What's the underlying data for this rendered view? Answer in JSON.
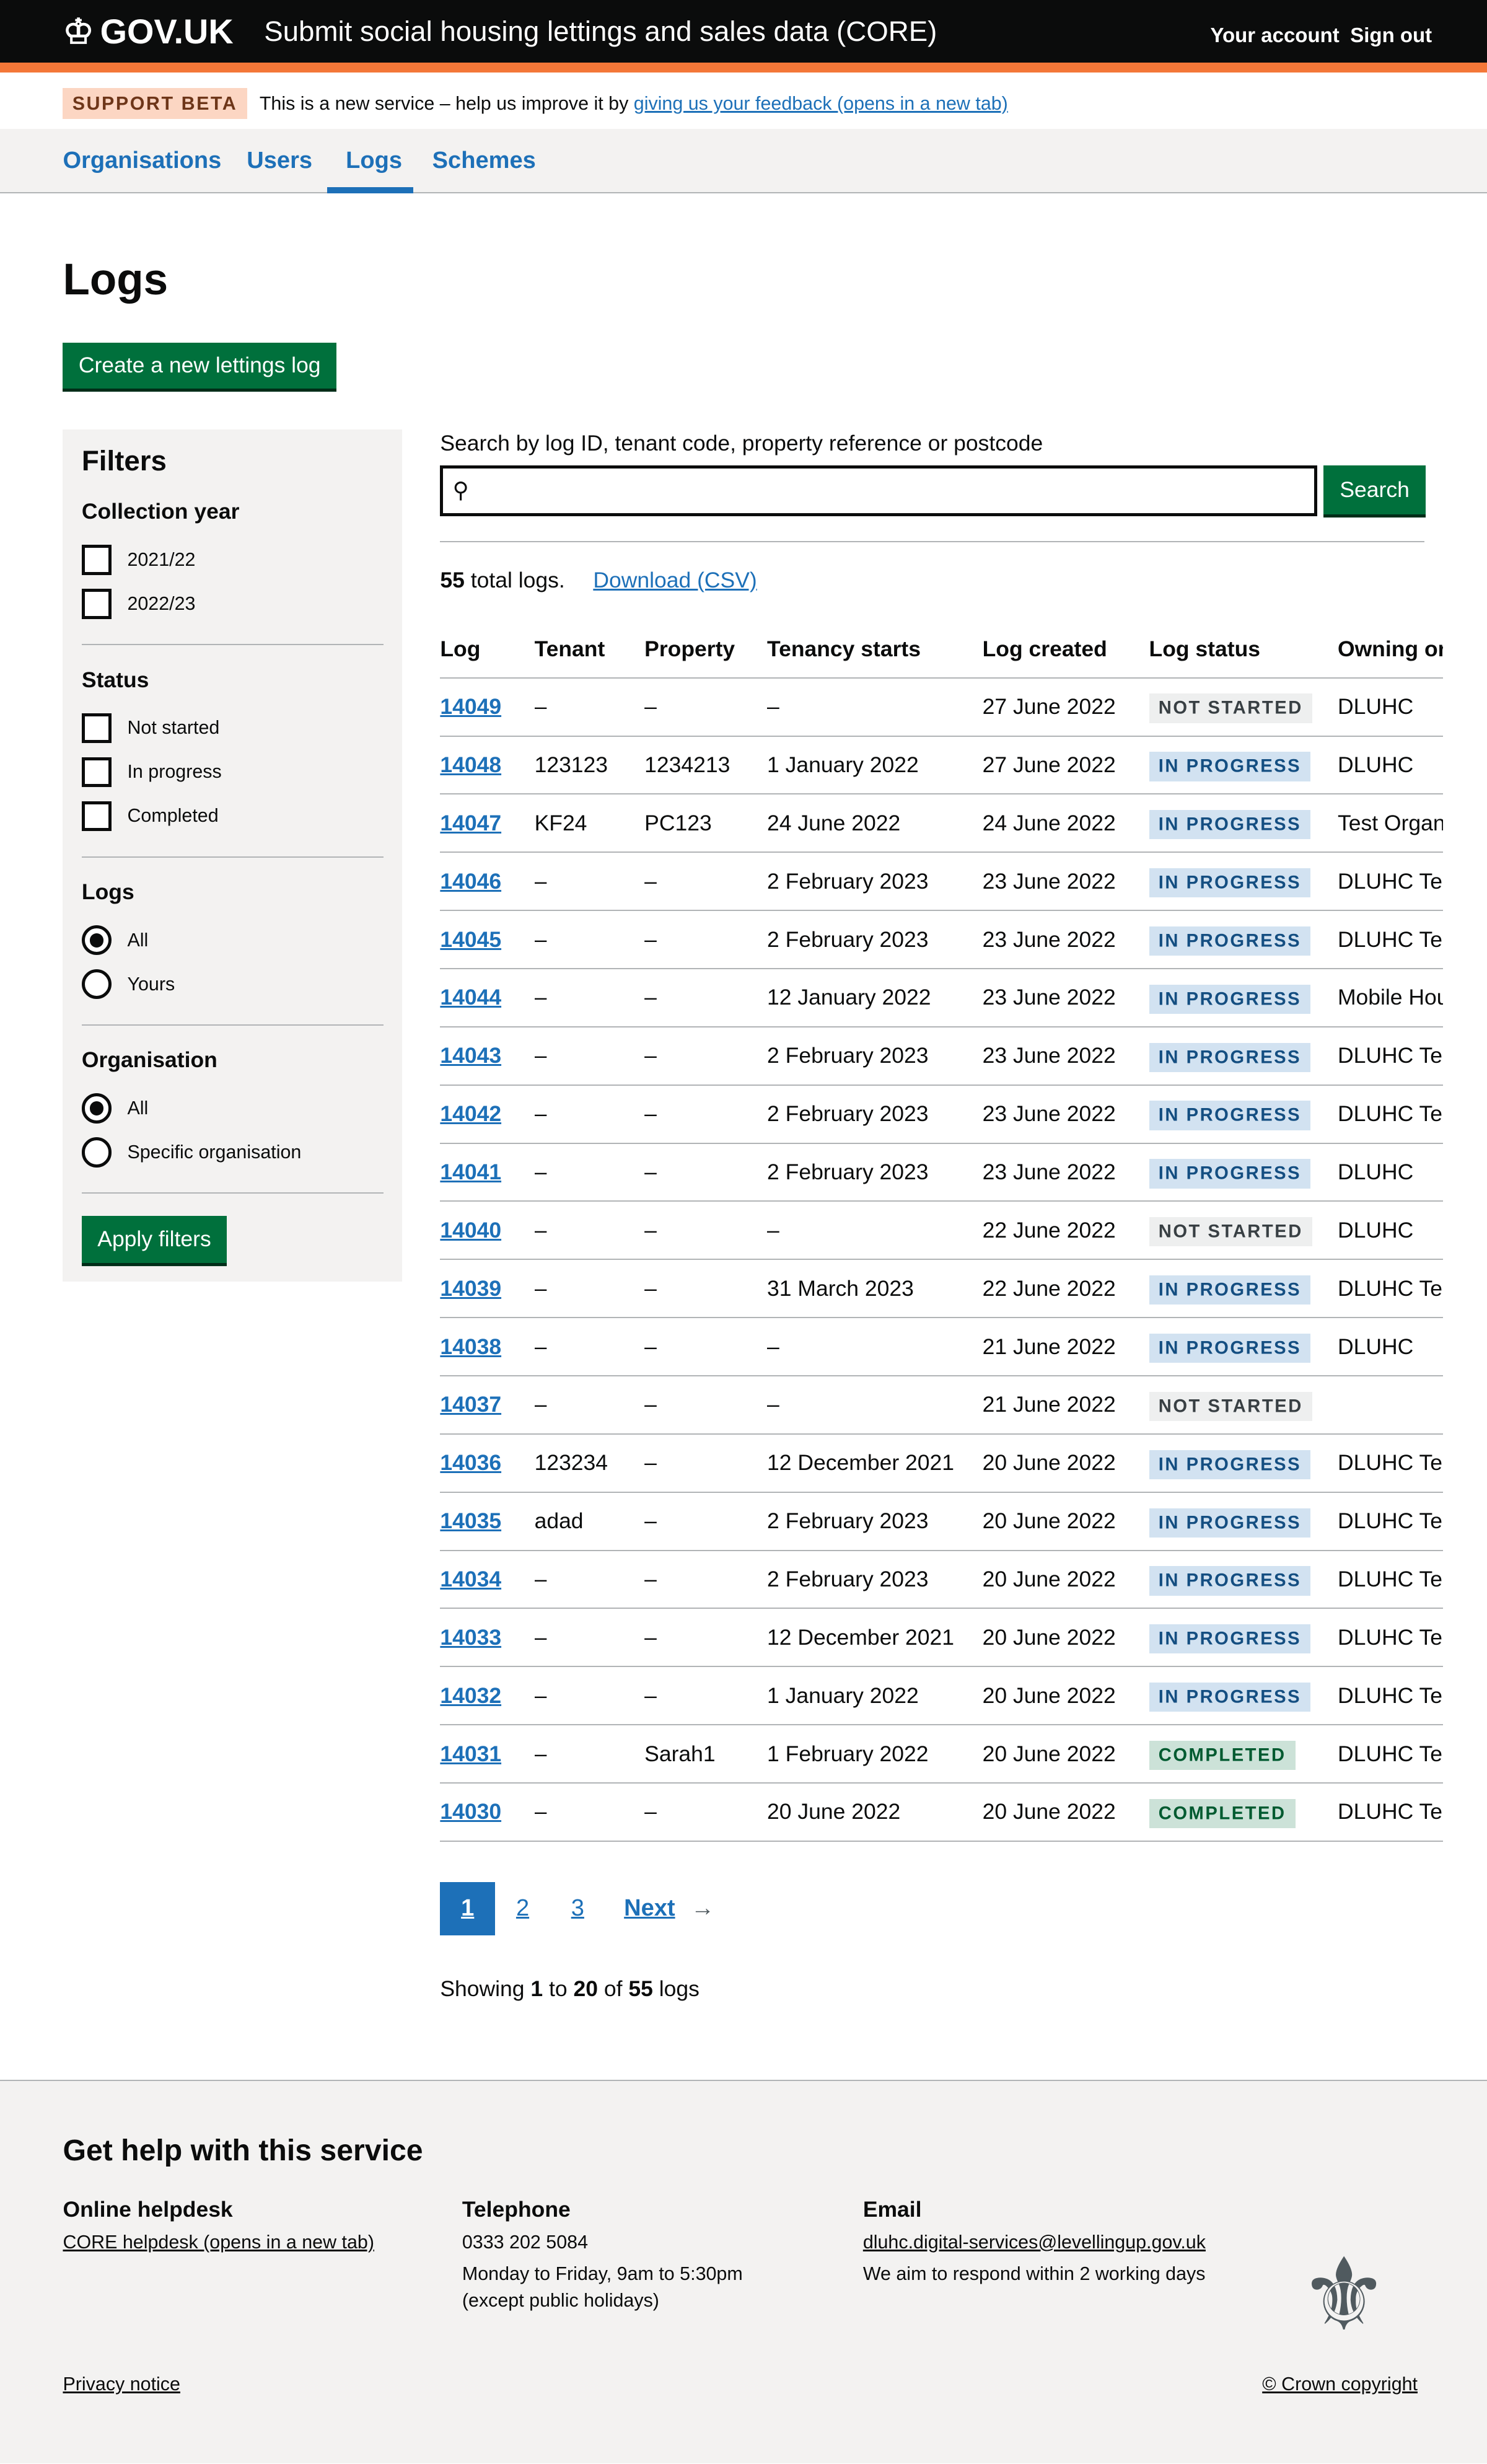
{
  "header": {
    "logo": "GOV.UK",
    "service": "Submit social housing lettings and sales data (CORE)",
    "your_account": "Your account",
    "sign_out": "Sign out"
  },
  "banner": {
    "tag": "SUPPORT BETA",
    "text": "This is a new service – help us improve it by",
    "link": "giving us your feedback (opens in a new tab)"
  },
  "nav": {
    "items": [
      {
        "label": "Organisations"
      },
      {
        "label": "Users"
      },
      {
        "label": "Logs"
      },
      {
        "label": "Schemes"
      }
    ],
    "active": "Logs"
  },
  "page": {
    "title": "Logs",
    "create_button": "Create a new lettings log"
  },
  "filters": {
    "title": "Filters",
    "collection_year": {
      "label": "Collection year",
      "options": [
        "2021/22",
        "2022/23"
      ]
    },
    "status": {
      "label": "Status",
      "options": [
        "Not started",
        "In progress",
        "Completed"
      ]
    },
    "logs": {
      "label": "Logs",
      "options": [
        "All",
        "Yours"
      ],
      "selected": "All"
    },
    "organisation": {
      "label": "Organisation",
      "options": [
        "All",
        "Specific organisation"
      ],
      "selected": "All"
    },
    "apply": "Apply filters"
  },
  "search": {
    "label": "Search by log ID, tenant code, property reference or postcode",
    "value": "",
    "button": "Search"
  },
  "summary": {
    "count": "55",
    "count_suffix": "total logs.",
    "download": "Download (CSV)"
  },
  "table": {
    "headers": [
      "Log",
      "Tenant",
      "Property",
      "Tenancy starts",
      "Log created",
      "Log status",
      "Owning or"
    ],
    "rows": [
      [
        "14049",
        "–",
        "–",
        "–",
        "27 June 2022",
        "NOT STARTED",
        "DLUHC"
      ],
      [
        "14048",
        "123123",
        "1234213",
        "1 January 2022",
        "27 June 2022",
        "IN PROGRESS",
        "DLUHC"
      ],
      [
        "14047",
        "KF24",
        "PC123",
        "24 June 2022",
        "24 June 2022",
        "IN PROGRESS",
        "Test Organ"
      ],
      [
        "14046",
        "–",
        "–",
        "2 February 2023",
        "23 June 2022",
        "IN PROGRESS",
        "DLUHC Tes"
      ],
      [
        "14045",
        "–",
        "–",
        "2 February 2023",
        "23 June 2022",
        "IN PROGRESS",
        "DLUHC Tes"
      ],
      [
        "14044",
        "–",
        "–",
        "12 January 2022",
        "23 June 2022",
        "IN PROGRESS",
        "Mobile Hou"
      ],
      [
        "14043",
        "–",
        "–",
        "2 February 2023",
        "23 June 2022",
        "IN PROGRESS",
        "DLUHC Tes"
      ],
      [
        "14042",
        "–",
        "–",
        "2 February 2023",
        "23 June 2022",
        "IN PROGRESS",
        "DLUHC Tes"
      ],
      [
        "14041",
        "–",
        "–",
        "2 February 2023",
        "23 June 2022",
        "IN PROGRESS",
        "DLUHC"
      ],
      [
        "14040",
        "–",
        "–",
        "–",
        "22 June 2022",
        "NOT STARTED",
        "DLUHC"
      ],
      [
        "14039",
        "–",
        "–",
        "31 March 2023",
        "22 June 2022",
        "IN PROGRESS",
        "DLUHC Tes"
      ],
      [
        "14038",
        "–",
        "–",
        "–",
        "21 June 2022",
        "IN PROGRESS",
        "DLUHC"
      ],
      [
        "14037",
        "–",
        "–",
        "–",
        "21 June 2022",
        "NOT STARTED",
        ""
      ],
      [
        "14036",
        "123234",
        "–",
        "12 December 2021",
        "20 June 2022",
        "IN PROGRESS",
        "DLUHC Tes"
      ],
      [
        "14035",
        "adad",
        "–",
        "2 February 2023",
        "20 June 2022",
        "IN PROGRESS",
        "DLUHC Tes"
      ],
      [
        "14034",
        "–",
        "–",
        "2 February 2023",
        "20 June 2022",
        "IN PROGRESS",
        "DLUHC Tes"
      ],
      [
        "14033",
        "–",
        "–",
        "12 December 2021",
        "20 June 2022",
        "IN PROGRESS",
        "DLUHC Tes"
      ],
      [
        "14032",
        "–",
        "–",
        "1 January 2022",
        "20 June 2022",
        "IN PROGRESS",
        "DLUHC Tes"
      ],
      [
        "14031",
        "–",
        "Sarah1",
        "1 February 2022",
        "20 June 2022",
        "COMPLETED",
        "DLUHC Tes"
      ],
      [
        "14030",
        "–",
        "–",
        "20 June 2022",
        "20 June 2022",
        "COMPLETED",
        "DLUHC Tes"
      ]
    ]
  },
  "status_colors": {
    "NOT STARTED": {
      "bg": "#eeefef",
      "fg": "#383f43"
    },
    "IN PROGRESS": {
      "bg": "#d2e2f1",
      "fg": "#144e81"
    },
    "COMPLETED": {
      "bg": "#cce2d8",
      "fg": "#005a30"
    }
  },
  "pagination": {
    "pages": [
      "1",
      "2",
      "3"
    ],
    "current": "1",
    "next": "Next"
  },
  "showing": {
    "prefix": "Showing",
    "from": "1",
    "to_word": "to",
    "to": "20",
    "of_word": "of",
    "total": "55",
    "suffix": "logs"
  },
  "footer": {
    "title": "Get help with this service",
    "helpdesk": {
      "title": "Online helpdesk",
      "link": "CORE helpdesk (opens in a new tab)"
    },
    "telephone": {
      "title": "Telephone",
      "number": "0333 202 5084",
      "hours": "Monday to Friday, 9am to 5:30pm",
      "note": "(except public holidays)"
    },
    "email": {
      "title": "Email",
      "address": "dluhc.digital-services@levellingup.gov.uk",
      "note": "We aim to respond within 2 working days"
    },
    "privacy": "Privacy notice",
    "copyright": "© Crown copyright"
  }
}
